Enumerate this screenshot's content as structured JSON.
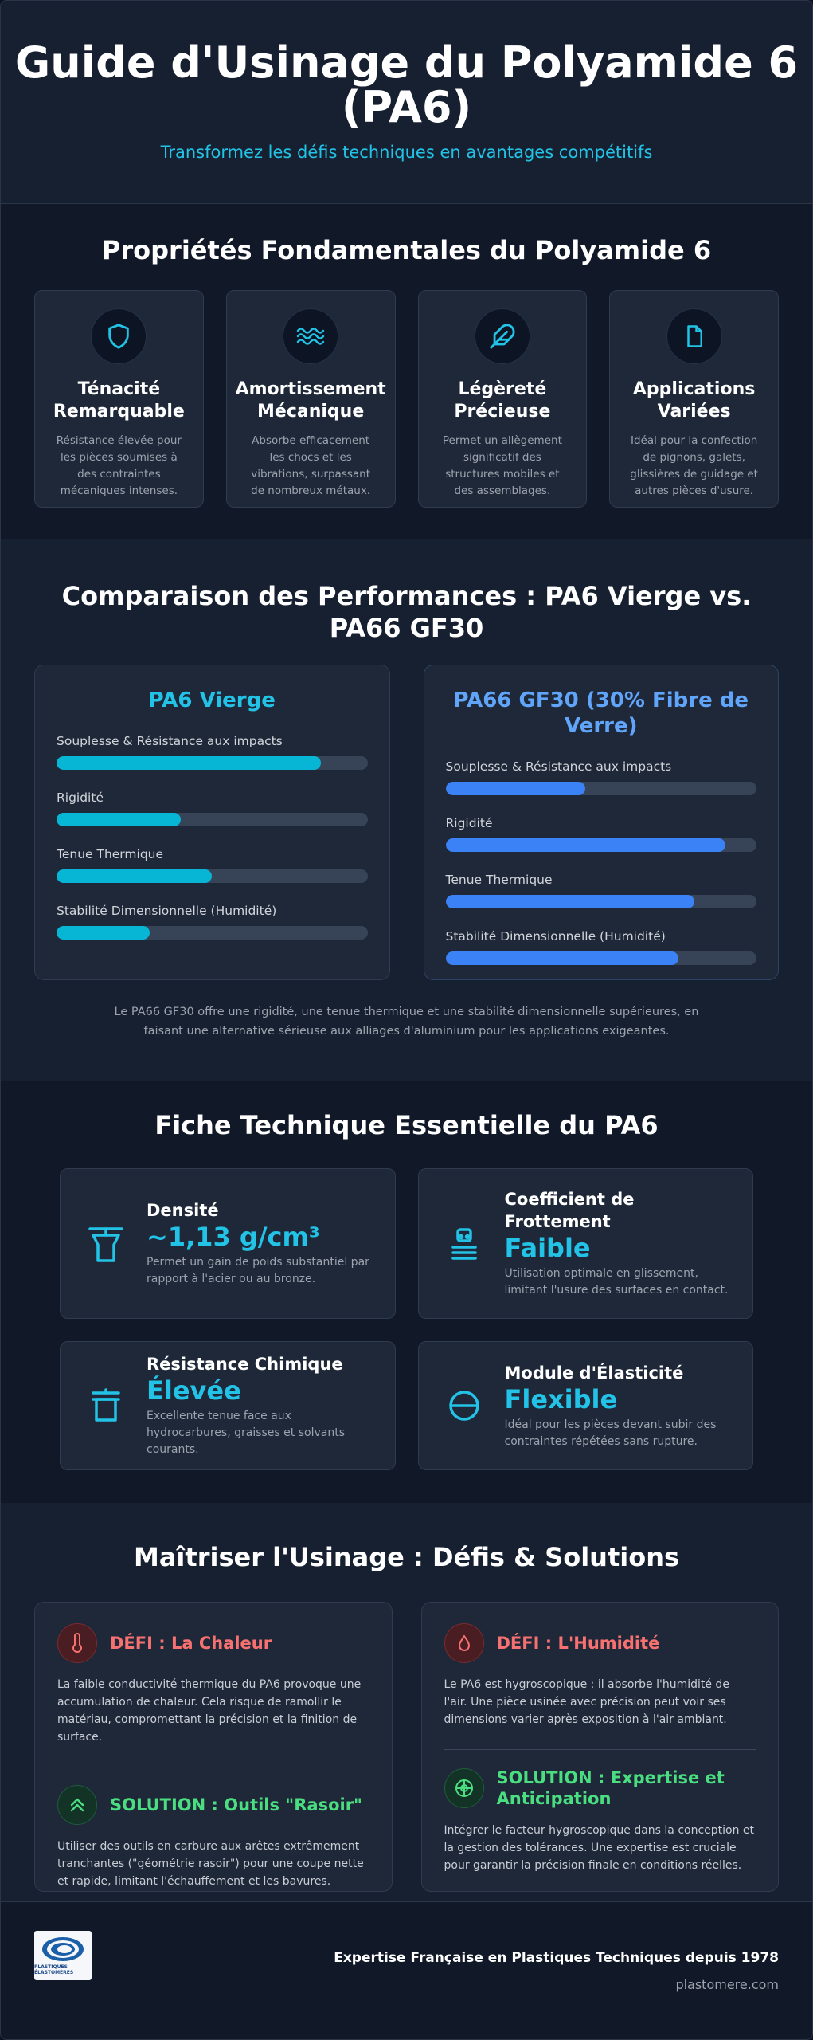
{
  "hero": {
    "title": "Guide d'Usinage du Polyamide 6 (PA6)",
    "subtitle": "Transformez les défis techniques en avantages compétitifs"
  },
  "properties": {
    "title": "Propriétés Fondamentales du Polyamide 6",
    "cards": [
      {
        "icon": "shield-icon",
        "title": "Ténacité Remarquable",
        "text": "Résistance élevée pour les pièces soumises à des contraintes mécaniques intenses."
      },
      {
        "icon": "waves-icon",
        "title": "Amortissement Mécanique",
        "text": "Absorbe efficacement les chocs et les vibrations, surpassant de nombreux métaux."
      },
      {
        "icon": "feather-icon",
        "title": "Légèreté Précieuse",
        "text": "Permet un allègement significatif des structures mobiles et des assemblages."
      },
      {
        "icon": "document-icon",
        "title": "Applications Variées",
        "text": "Idéal pour la confection de pignons, galets, glissières de guidage et autres pièces d'usure."
      }
    ]
  },
  "comparison": {
    "title": "Comparaison des Performances : PA6 Vierge vs. PA66 GF30",
    "virgin": {
      "title": "PA6 Vierge",
      "bars": [
        {
          "label": "Souplesse & Résistance aux impacts",
          "value": 0.85
        },
        {
          "label": "Rigidité",
          "value": 0.4
        },
        {
          "label": "Tenue Thermique",
          "value": 0.5
        },
        {
          "label": "Stabilité Dimensionnelle (Humidité)",
          "value": 0.3
        }
      ]
    },
    "glass": {
      "title": "PA66 GF30 (30% Fibre de Verre)",
      "bars": [
        {
          "label": "Souplesse & Résistance aux impacts",
          "value": 0.45
        },
        {
          "label": "Rigidité",
          "value": 0.9
        },
        {
          "label": "Tenue Thermique",
          "value": 0.8
        },
        {
          "label": "Stabilité Dimensionnelle (Humidité)",
          "value": 0.75
        }
      ]
    },
    "note": "Le PA66 GF30 offre une rigidité, une tenue thermique et une stabilité dimensionnelle supérieures, en faisant une alternative sérieuse aux alliages d'aluminium pour les applications exigeantes."
  },
  "tech": {
    "title": "Fiche Technique Essentielle du PA6",
    "cards": [
      {
        "icon": "scale-icon",
        "title": "Densité",
        "value": "~1,13 g/cm³",
        "text": "Permet un gain de poids substantiel par rapport à l'acier ou au bronze."
      },
      {
        "icon": "friction-icon",
        "title": "Coefficient de Frottement",
        "value": "Faible",
        "text": "Utilisation optimale en glissement, limitant l'usure des surfaces en contact."
      },
      {
        "icon": "beaker-icon",
        "title": "Résistance Chimique",
        "value": "Élevée",
        "text": "Excellente tenue face aux hydrocarbures, graisses et solvants courants."
      },
      {
        "icon": "minus-circle-icon",
        "title": "Module d'Élasticité",
        "value": "Flexible",
        "text": "Idéal pour les pièces devant subir des contraintes répétées sans rupture."
      }
    ]
  },
  "mastery": {
    "title": "Maîtriser l'Usinage : Défis & Solutions",
    "left": {
      "challenge_title": "DÉFI : La Chaleur",
      "challenge_text": "La faible conductivité thermique du PA6 provoque une accumulation de chaleur. Cela risque de ramollir le matériau, compromettant la précision et la finition de surface.",
      "solution_title": "SOLUTION : Outils \"Rasoir\"",
      "solution_text": "Utiliser des outils en carbure aux arêtes extrêmement tranchantes (\"géométrie rasoir\") pour une coupe nette et rapide, limitant l'échauffement et les bavures."
    },
    "right": {
      "challenge_title": "DÉFI : L'Humidité",
      "challenge_text": "Le PA6 est hygroscopique : il absorbe l'humidité de l'air. Une pièce usinée avec précision peut voir ses dimensions varier après exposition à l'air ambiant.",
      "solution_title": "SOLUTION : Expertise et Anticipation",
      "solution_text": "Intégrer le facteur hygroscopique dans la conception et la gestion des tolérances. Une expertise est cruciale pour garantir la précision finale en conditions réelles."
    }
  },
  "footer": {
    "logo_text": "PLASTIQUES ÉLASTOMÈRES",
    "tagline": "Expertise Française en Plastiques Techniques depuis 1978",
    "site": "plastomere.com"
  },
  "colors": {
    "accent": "#22c3e6",
    "accent_blue": "#60a5fa",
    "danger": "#f87171",
    "success": "#4ade80"
  }
}
